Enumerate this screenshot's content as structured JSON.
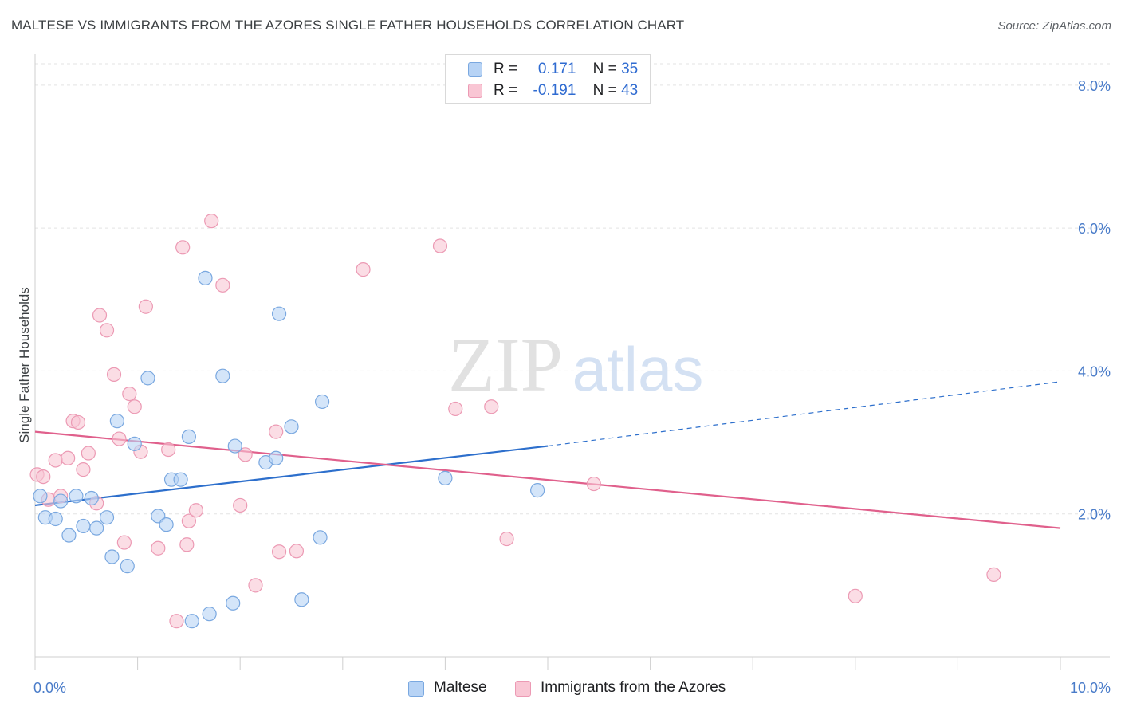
{
  "title": "MALTESE VS IMMIGRANTS FROM THE AZORES SINGLE FATHER HOUSEHOLDS CORRELATION CHART",
  "source": "Source: ZipAtlas.com",
  "watermark": {
    "zip": "ZIP",
    "atlas": "atlas"
  },
  "legend": {
    "maltese": {
      "r_label": "R =",
      "r_value": "0.171",
      "n_label": "N =",
      "n_value": "35"
    },
    "azores": {
      "r_label": "R =",
      "r_value": "-0.191",
      "n_label": "N =",
      "n_value": "43"
    }
  },
  "colors": {
    "maltese_fill": "#b7d3f5",
    "maltese_stroke": "#7aa8e0",
    "maltese_line": "#2d6fcc",
    "azores_fill": "#f9c6d4",
    "azores_stroke": "#ec9ab4",
    "azores_line": "#e0608c",
    "tick_text": "#4a7cc9",
    "grid": "#e3e3e3"
  },
  "chart_data": {
    "type": "scatter",
    "title": "MALTESE VS IMMIGRANTS FROM THE AZORES SINGLE FATHER HOUSEHOLDS CORRELATION CHART",
    "xlabel": "",
    "ylabel": "Single Father Households",
    "xlim": [
      0,
      10
    ],
    "ylim": [
      0,
      8.5
    ],
    "x_tick_labels": [
      "0.0%",
      "10.0%"
    ],
    "y_ticks": [
      2,
      4,
      6,
      8
    ],
    "y_tick_labels": [
      "2.0%",
      "4.0%",
      "6.0%",
      "8.0%"
    ],
    "grid": true,
    "legend_position": "top-center",
    "series": [
      {
        "name": "Maltese",
        "points": [
          [
            0.05,
            2.25
          ],
          [
            0.1,
            1.95
          ],
          [
            0.2,
            1.93
          ],
          [
            0.25,
            2.18
          ],
          [
            0.33,
            1.7
          ],
          [
            0.4,
            2.25
          ],
          [
            0.47,
            1.83
          ],
          [
            0.55,
            2.22
          ],
          [
            0.6,
            1.8
          ],
          [
            0.7,
            1.95
          ],
          [
            0.75,
            1.4
          ],
          [
            0.8,
            3.3
          ],
          [
            0.9,
            1.27
          ],
          [
            0.97,
            2.98
          ],
          [
            1.1,
            3.9
          ],
          [
            1.2,
            1.97
          ],
          [
            1.28,
            1.85
          ],
          [
            1.33,
            2.48
          ],
          [
            1.42,
            2.48
          ],
          [
            1.5,
            3.08
          ],
          [
            1.53,
            0.5
          ],
          [
            1.66,
            5.3
          ],
          [
            1.7,
            0.6
          ],
          [
            1.83,
            3.93
          ],
          [
            1.93,
            0.75
          ],
          [
            1.95,
            2.95
          ],
          [
            2.25,
            2.72
          ],
          [
            2.35,
            2.78
          ],
          [
            2.38,
            4.8
          ],
          [
            2.5,
            3.22
          ],
          [
            2.6,
            0.8
          ],
          [
            2.78,
            1.67
          ],
          [
            2.8,
            3.57
          ],
          [
            4.0,
            2.5
          ],
          [
            4.9,
            2.33
          ]
        ],
        "trend": {
          "x": [
            0,
            5.0
          ],
          "y": [
            2.12,
            2.95
          ]
        },
        "trend_extension": {
          "x": [
            5.0,
            10.0
          ],
          "y": [
            2.95,
            3.85
          ]
        }
      },
      {
        "name": "Immigrants from the Azores",
        "points": [
          [
            0.02,
            2.55
          ],
          [
            0.08,
            2.52
          ],
          [
            0.13,
            2.2
          ],
          [
            0.2,
            2.75
          ],
          [
            0.25,
            2.25
          ],
          [
            0.32,
            2.78
          ],
          [
            0.37,
            3.3
          ],
          [
            0.42,
            3.28
          ],
          [
            0.47,
            2.62
          ],
          [
            0.52,
            2.85
          ],
          [
            0.6,
            2.15
          ],
          [
            0.63,
            4.78
          ],
          [
            0.7,
            4.57
          ],
          [
            0.77,
            3.95
          ],
          [
            0.82,
            3.05
          ],
          [
            0.87,
            1.6
          ],
          [
            0.92,
            3.68
          ],
          [
            0.97,
            3.5
          ],
          [
            1.03,
            2.87
          ],
          [
            1.08,
            4.9
          ],
          [
            1.2,
            1.52
          ],
          [
            1.3,
            2.9
          ],
          [
            1.38,
            0.5
          ],
          [
            1.44,
            5.73
          ],
          [
            1.48,
            1.57
          ],
          [
            1.5,
            1.9
          ],
          [
            1.57,
            2.05
          ],
          [
            1.72,
            6.1
          ],
          [
            1.83,
            5.2
          ],
          [
            2.0,
            2.12
          ],
          [
            2.05,
            2.83
          ],
          [
            2.15,
            1.0
          ],
          [
            2.35,
            3.15
          ],
          [
            2.38,
            1.47
          ],
          [
            2.55,
            1.48
          ],
          [
            3.2,
            5.42
          ],
          [
            3.95,
            5.75
          ],
          [
            4.1,
            3.47
          ],
          [
            4.45,
            3.5
          ],
          [
            4.6,
            1.65
          ],
          [
            5.45,
            2.42
          ],
          [
            8.0,
            0.85
          ],
          [
            9.35,
            1.15
          ]
        ],
        "trend": {
          "x": [
            0,
            10.0
          ],
          "y": [
            3.15,
            1.8
          ]
        }
      }
    ]
  },
  "bottom_legend": {
    "maltese": "Maltese",
    "azores": "Immigrants from the Azores"
  }
}
